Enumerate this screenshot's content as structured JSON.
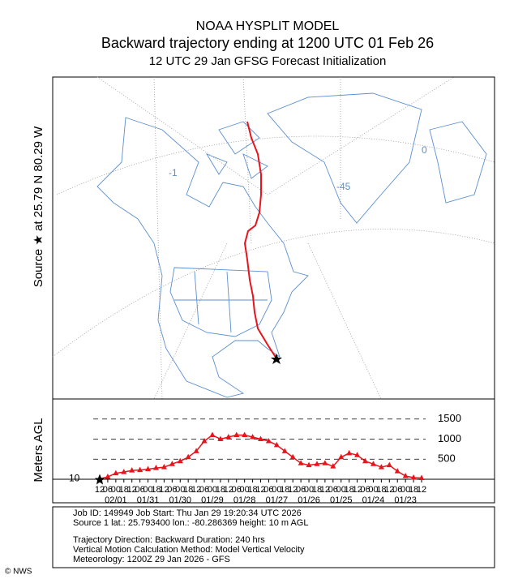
{
  "header": {
    "lines": [
      "NOAA HYSPLIT MODEL",
      "Backward trajectory ending at 1200 UTC 01 Feb 26",
      "12 UTC 29 Jan    GFSG  Forecast Initialization"
    ]
  },
  "map": {
    "side_label": "Source ★ at  25.79 N   80.29 W",
    "labels": [
      "0",
      "-45",
      "-1"
    ]
  },
  "chart_data": {
    "type": "line",
    "ylabel": "Meters AGL",
    "color": "#e8141c",
    "x": [
      0,
      6,
      12,
      18,
      24,
      30,
      36,
      42,
      48,
      54,
      60,
      66,
      72,
      78,
      84,
      90,
      96,
      102,
      108,
      114,
      120,
      126,
      132,
      138,
      144,
      150,
      156,
      162,
      168,
      174,
      180,
      186,
      192,
      198,
      204,
      210,
      216,
      222,
      228,
      234,
      240
    ],
    "values": [
      10,
      60,
      150,
      180,
      220,
      230,
      250,
      280,
      300,
      380,
      450,
      550,
      700,
      950,
      1100,
      1000,
      1050,
      1100,
      1100,
      1050,
      1000,
      950,
      850,
      700,
      550,
      400,
      350,
      380,
      400,
      320,
      550,
      650,
      600,
      450,
      380,
      300,
      350,
      200,
      80,
      40,
      30
    ],
    "xlim": [
      0,
      240
    ],
    "ylim": [
      0,
      2000
    ],
    "yticks": [
      500,
      1000,
      1500
    ],
    "start_height": 10,
    "grid": true,
    "xticks": [
      {
        "value": 0,
        "label": "12"
      },
      {
        "value": 6,
        "label": "06"
      },
      {
        "value": 12,
        "label": "00"
      },
      {
        "value": 18,
        "label": "18"
      },
      {
        "value": 24,
        "label": "12"
      },
      {
        "value": 30,
        "label": "06"
      },
      {
        "value": 36,
        "label": "00"
      },
      {
        "value": 42,
        "label": "18"
      },
      {
        "value": 48,
        "label": "12"
      },
      {
        "value": 54,
        "label": "06"
      },
      {
        "value": 60,
        "label": "00"
      },
      {
        "value": 66,
        "label": "18"
      },
      {
        "value": 72,
        "label": "12"
      },
      {
        "value": 78,
        "label": "06"
      },
      {
        "value": 84,
        "label": "00"
      },
      {
        "value": 90,
        "label": "18"
      },
      {
        "value": 96,
        "label": "12"
      },
      {
        "value": 102,
        "label": "06"
      },
      {
        "value": 108,
        "label": "00"
      },
      {
        "value": 114,
        "label": "18"
      },
      {
        "value": 120,
        "label": "12"
      },
      {
        "value": 126,
        "label": "06"
      },
      {
        "value": 132,
        "label": "00"
      },
      {
        "value": 138,
        "label": "18"
      },
      {
        "value": 144,
        "label": "12"
      },
      {
        "value": 150,
        "label": "06"
      },
      {
        "value": 156,
        "label": "00"
      },
      {
        "value": 162,
        "label": "18"
      },
      {
        "value": 168,
        "label": "12"
      },
      {
        "value": 174,
        "label": "06"
      },
      {
        "value": 180,
        "label": "00"
      },
      {
        "value": 186,
        "label": "18"
      },
      {
        "value": 192,
        "label": "12"
      },
      {
        "value": 198,
        "label": "06"
      },
      {
        "value": 204,
        "label": "00"
      },
      {
        "value": 210,
        "label": "18"
      },
      {
        "value": 216,
        "label": "12"
      },
      {
        "value": 222,
        "label": "06"
      },
      {
        "value": 228,
        "label": "00"
      },
      {
        "value": 234,
        "label": "18"
      },
      {
        "value": 240,
        "label": "12"
      }
    ],
    "date_ticks": [
      {
        "value": 12,
        "label": "02/01"
      },
      {
        "value": 36,
        "label": "01/31"
      },
      {
        "value": 60,
        "label": "01/30"
      },
      {
        "value": 84,
        "label": "01/29"
      },
      {
        "value": 108,
        "label": "01/28"
      },
      {
        "value": 132,
        "label": "01/27"
      },
      {
        "value": 156,
        "label": "01/26"
      },
      {
        "value": 180,
        "label": "01/25"
      },
      {
        "value": 204,
        "label": "01/24"
      },
      {
        "value": 228,
        "label": "01/23"
      }
    ]
  },
  "info": {
    "lines": [
      "Job ID: 149949            Job Start: Thu Jan 29 19:20:34 UTC 2026",
      "Source 1       lat.: 25.793400    lon.: -80.286369    height: 10 m AGL",
      "Trajectory Direction: Backward        Duration: 240 hrs",
      "Vertical Motion Calculation Method:        Model Vertical Velocity",
      "Meteorology: 1200Z 29 Jan 2026 - GFS"
    ]
  },
  "watermark": "© NWS"
}
